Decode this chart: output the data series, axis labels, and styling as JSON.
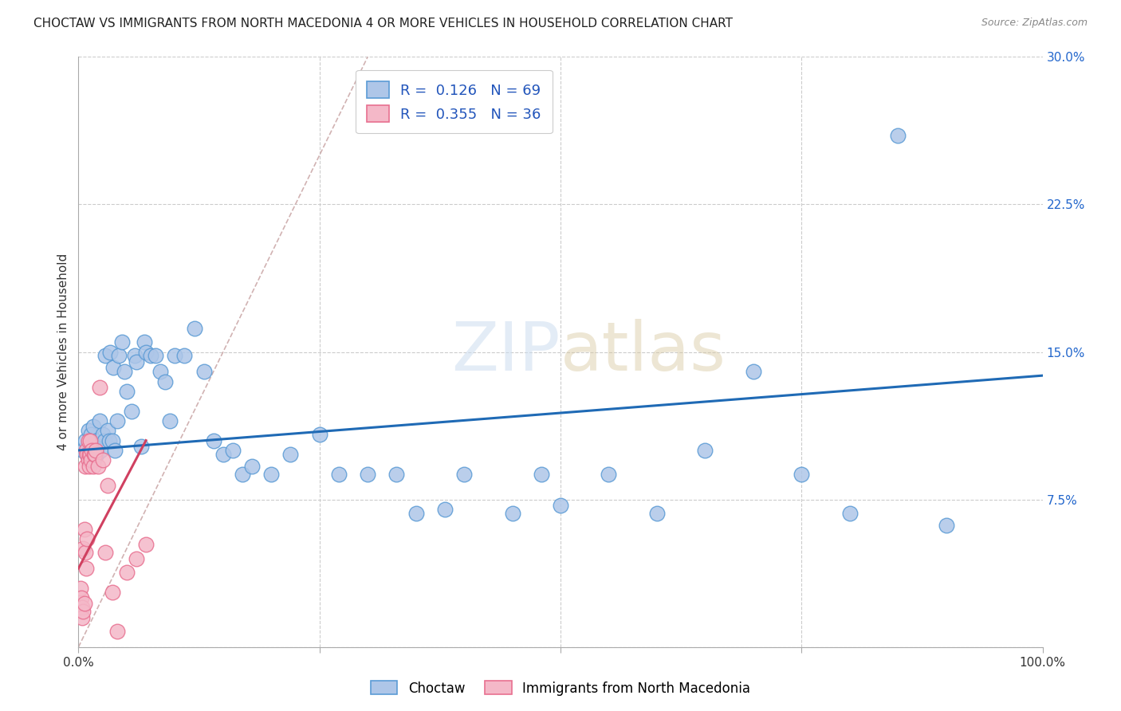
{
  "title": "CHOCTAW VS IMMIGRANTS FROM NORTH MACEDONIA 4 OR MORE VEHICLES IN HOUSEHOLD CORRELATION CHART",
  "source": "Source: ZipAtlas.com",
  "ylabel": "4 or more Vehicles in Household",
  "xlim": [
    0.0,
    1.0
  ],
  "ylim": [
    0.0,
    0.3
  ],
  "yticks": [
    0.0,
    0.075,
    0.15,
    0.225,
    0.3
  ],
  "ytick_labels": [
    "",
    "7.5%",
    "15.0%",
    "22.5%",
    "30.0%"
  ],
  "legend_labels": [
    "Choctaw",
    "Immigrants from North Macedonia"
  ],
  "choctaw_color": "#aec6e8",
  "choctaw_edge_color": "#5b9bd5",
  "macedonia_color": "#f4b8c8",
  "macedonia_edge_color": "#e87090",
  "choctaw_R": 0.126,
  "choctaw_N": 69,
  "macedonia_R": 0.355,
  "macedonia_N": 36,
  "choctaw_trend_color": "#1f6ab5",
  "macedonia_trend_color": "#d04060",
  "diagonal_color": "#ccaaaa",
  "background_color": "#ffffff",
  "grid_color": "#cccccc",
  "choctaw_x": [
    0.005,
    0.007,
    0.009,
    0.01,
    0.011,
    0.012,
    0.013,
    0.015,
    0.016,
    0.017,
    0.018,
    0.019,
    0.02,
    0.022,
    0.023,
    0.025,
    0.027,
    0.028,
    0.03,
    0.032,
    0.033,
    0.035,
    0.036,
    0.038,
    0.04,
    0.042,
    0.045,
    0.048,
    0.05,
    0.055,
    0.058,
    0.06,
    0.065,
    0.068,
    0.07,
    0.075,
    0.08,
    0.085,
    0.09,
    0.095,
    0.1,
    0.11,
    0.12,
    0.13,
    0.14,
    0.15,
    0.16,
    0.17,
    0.18,
    0.2,
    0.22,
    0.25,
    0.27,
    0.3,
    0.33,
    0.35,
    0.38,
    0.4,
    0.45,
    0.48,
    0.5,
    0.55,
    0.6,
    0.65,
    0.7,
    0.75,
    0.8,
    0.85,
    0.9
  ],
  "choctaw_y": [
    0.1,
    0.105,
    0.098,
    0.11,
    0.095,
    0.102,
    0.108,
    0.112,
    0.095,
    0.1,
    0.105,
    0.098,
    0.102,
    0.115,
    0.1,
    0.108,
    0.105,
    0.148,
    0.11,
    0.105,
    0.15,
    0.105,
    0.142,
    0.1,
    0.115,
    0.148,
    0.155,
    0.14,
    0.13,
    0.12,
    0.148,
    0.145,
    0.102,
    0.155,
    0.15,
    0.148,
    0.148,
    0.14,
    0.135,
    0.115,
    0.148,
    0.148,
    0.162,
    0.14,
    0.105,
    0.098,
    0.1,
    0.088,
    0.092,
    0.088,
    0.098,
    0.108,
    0.088,
    0.088,
    0.088,
    0.068,
    0.07,
    0.088,
    0.068,
    0.088,
    0.072,
    0.088,
    0.068,
    0.1,
    0.14,
    0.088,
    0.068,
    0.26,
    0.062
  ],
  "choctaw_trend_x": [
    0.0,
    1.0
  ],
  "choctaw_trend_y": [
    0.1,
    0.138
  ],
  "macedonia_x": [
    0.002,
    0.003,
    0.004,
    0.004,
    0.005,
    0.005,
    0.006,
    0.006,
    0.007,
    0.007,
    0.008,
    0.008,
    0.009,
    0.009,
    0.01,
    0.01,
    0.011,
    0.011,
    0.012,
    0.012,
    0.013,
    0.014,
    0.015,
    0.016,
    0.017,
    0.018,
    0.02,
    0.022,
    0.025,
    0.028,
    0.03,
    0.035,
    0.04,
    0.05,
    0.06,
    0.07
  ],
  "macedonia_y": [
    0.03,
    0.025,
    0.02,
    0.015,
    0.018,
    0.05,
    0.022,
    0.06,
    0.048,
    0.092,
    0.04,
    0.1,
    0.055,
    0.098,
    0.095,
    0.105,
    0.092,
    0.098,
    0.098,
    0.105,
    0.095,
    0.1,
    0.092,
    0.098,
    0.098,
    0.1,
    0.092,
    0.132,
    0.095,
    0.048,
    0.082,
    0.028,
    0.008,
    0.038,
    0.045,
    0.052
  ],
  "macedonia_trend_x": [
    0.0,
    0.07
  ],
  "macedonia_trend_y": [
    0.04,
    0.105
  ]
}
